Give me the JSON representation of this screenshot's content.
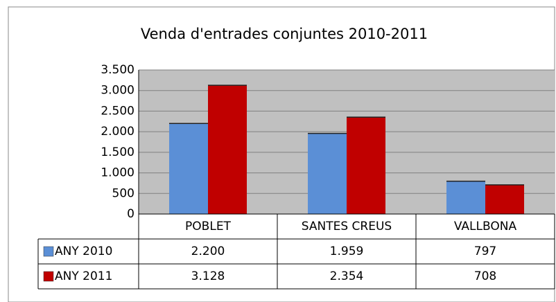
{
  "chart_data": {
    "type": "bar",
    "title": "Venda d'entrades conjuntes 2010-2011",
    "categories": [
      "POBLET",
      "SANTES CREUS",
      "VALLBONA"
    ],
    "series": [
      {
        "name": "ANY 2010",
        "color": "#5b8fd6",
        "values": [
          2200,
          1959,
          797
        ],
        "value_labels": [
          "2.200",
          "1.959",
          "797"
        ]
      },
      {
        "name": "ANY 2011",
        "color": "#c00000",
        "values": [
          3128,
          2354,
          708
        ],
        "value_labels": [
          "3.128",
          "2.354",
          "708"
        ]
      }
    ],
    "ylim": [
      0,
      3500
    ],
    "yticks": [
      0,
      500,
      {
        "value": 1000,
        "label": "1.000"
      },
      {
        "value": 1500,
        "label": "1.500"
      },
      {
        "value": 2000,
        "label": "2.000"
      },
      {
        "value": 2500,
        "label": "2.500"
      },
      {
        "value": 3000,
        "label": "3.000"
      },
      {
        "value": 3500,
        "label": "3.500"
      }
    ],
    "grid": true,
    "data_table": true
  }
}
